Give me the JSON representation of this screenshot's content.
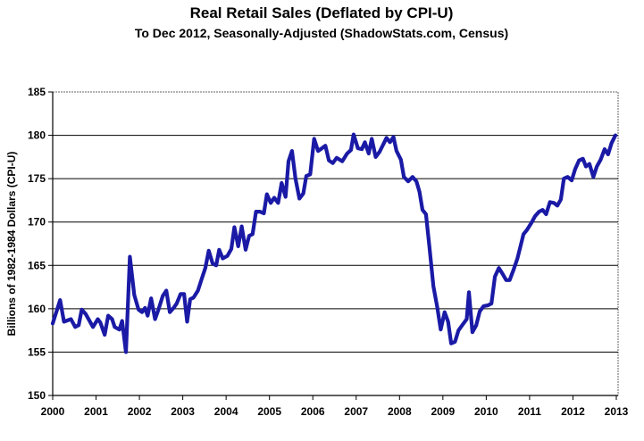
{
  "chart_data": {
    "type": "line",
    "title": "Real Retail Sales (Deflated by CPI-U)",
    "subtitle": "To Dec 2012, Seasonally-Adjusted (ShadowStats.com, Census)",
    "xlabel": "",
    "ylabel": "Billions of 1982-1984 Dollars (CPI-U)",
    "xlim": [
      2000,
      2013
    ],
    "ylim": [
      150,
      185
    ],
    "grid": true,
    "line_color": "#1a1aa6",
    "x_ticks": [
      "2000",
      "2001",
      "2002",
      "2003",
      "2004",
      "2005",
      "2006",
      "2007",
      "2008",
      "2009",
      "2010",
      "2011",
      "2012",
      "2013"
    ],
    "y_ticks": [
      "150",
      "155",
      "160",
      "165",
      "170",
      "175",
      "180",
      "185"
    ],
    "series": [
      {
        "name": "Real Retail Sales",
        "x": [
          2000.0,
          2000.17,
          2000.26,
          2000.42,
          2000.52,
          2000.6,
          2000.67,
          2000.76,
          2000.93,
          2001.04,
          2001.1,
          2001.2,
          2001.28,
          2001.37,
          2001.43,
          2001.54,
          2001.6,
          2001.69,
          2001.78,
          2001.88,
          2001.98,
          2002.06,
          2002.13,
          2002.19,
          2002.27,
          2002.36,
          2002.44,
          2002.54,
          2002.62,
          2002.7,
          2002.79,
          2002.86,
          2002.95,
          2003.03,
          2003.1,
          2003.17,
          2003.25,
          2003.35,
          2003.44,
          2003.52,
          2003.6,
          2003.69,
          2003.77,
          2003.84,
          2003.92,
          2004.03,
          2004.12,
          2004.19,
          2004.28,
          2004.36,
          2004.45,
          2004.53,
          2004.61,
          2004.69,
          2004.78,
          2004.87,
          2004.94,
          2005.03,
          2005.11,
          2005.2,
          2005.28,
          2005.37,
          2005.44,
          2005.52,
          2005.6,
          2005.69,
          2005.78,
          2005.85,
          2005.94,
          2006.03,
          2006.12,
          2006.21,
          2006.29,
          2006.37,
          2006.46,
          2006.55,
          2006.68,
          2006.79,
          2006.88,
          2006.94,
          2007.04,
          2007.13,
          2007.2,
          2007.29,
          2007.36,
          2007.45,
          2007.54,
          2007.63,
          2007.7,
          2007.78,
          2007.86,
          2007.93,
          2008.03,
          2008.1,
          2008.2,
          2008.3,
          2008.39,
          2008.46,
          2008.53,
          2008.61,
          2008.69,
          2008.78,
          2008.87,
          2008.95,
          2009.04,
          2009.12,
          2009.19,
          2009.28,
          2009.36,
          2009.46,
          2009.55,
          2009.6,
          2009.68,
          2009.77,
          2009.85,
          2009.94,
          2010.04,
          2010.12,
          2010.2,
          2010.29,
          2010.38,
          2010.46,
          2010.54,
          2010.63,
          2010.72,
          2010.8,
          2010.86,
          2010.94,
          2011.04,
          2011.13,
          2011.22,
          2011.3,
          2011.38,
          2011.47,
          2011.56,
          2011.64,
          2011.72,
          2011.79,
          2011.88,
          2011.97,
          2012.05,
          2012.14,
          2012.23,
          2012.3,
          2012.38,
          2012.47,
          2012.55,
          2012.64,
          2012.73,
          2012.81,
          2012.89,
          2012.98
        ],
        "y": [
          158.3,
          161.0,
          158.5,
          158.8,
          157.9,
          158.1,
          159.9,
          159.4,
          157.9,
          158.8,
          158.4,
          157.0,
          159.2,
          158.8,
          157.9,
          157.6,
          158.6,
          155.0,
          166.0,
          161.6,
          159.9,
          159.6,
          160.1,
          159.2,
          161.2,
          158.8,
          159.9,
          161.5,
          162.1,
          159.6,
          160.1,
          160.6,
          161.7,
          161.7,
          158.5,
          161.1,
          161.3,
          162.1,
          163.5,
          164.7,
          166.7,
          165.2,
          165.0,
          166.8,
          165.8,
          166.1,
          166.9,
          169.4,
          167.2,
          169.5,
          166.8,
          168.4,
          168.6,
          171.2,
          171.2,
          171.0,
          173.2,
          172.2,
          172.8,
          172.2,
          174.5,
          172.9,
          177.0,
          178.2,
          175.0,
          172.7,
          173.3,
          175.3,
          175.5,
          179.6,
          178.2,
          178.5,
          178.8,
          177.1,
          176.8,
          177.4,
          177.0,
          177.9,
          178.3,
          180.1,
          178.5,
          178.4,
          179.2,
          177.9,
          179.6,
          177.5,
          178.1,
          179.0,
          179.7,
          179.2,
          179.8,
          178.2,
          177.2,
          175.2,
          174.7,
          175.2,
          174.7,
          173.5,
          171.4,
          170.9,
          167.1,
          162.6,
          160.2,
          157.6,
          159.6,
          158.5,
          156.0,
          156.2,
          157.5,
          158.2,
          158.8,
          161.9,
          157.3,
          158.1,
          159.7,
          160.3,
          160.4,
          160.6,
          163.7,
          164.7,
          164.0,
          163.3,
          163.3,
          164.5,
          165.8,
          167.4,
          168.6,
          169.1,
          169.9,
          170.7,
          171.2,
          171.4,
          170.9,
          172.3,
          172.2,
          171.9,
          172.6,
          175.0,
          175.2,
          174.8,
          176.1,
          177.1,
          177.3,
          176.4,
          176.7,
          175.2,
          176.4,
          177.2,
          178.4,
          177.8,
          179.1,
          180.0
        ]
      }
    ]
  }
}
